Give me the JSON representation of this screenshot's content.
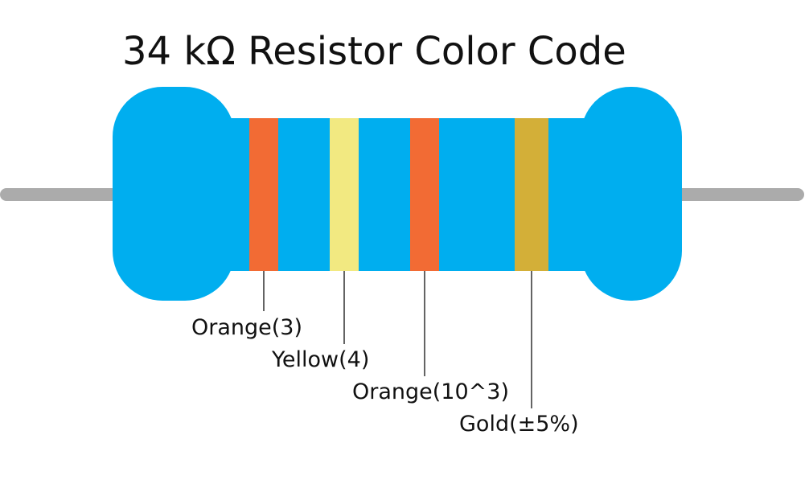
{
  "title": "34 kΩ Resistor Color Code",
  "colors": {
    "body": "#00AEEF",
    "lead": "#ABABAB",
    "orange": "#F26B34",
    "yellow": "#F2E981",
    "gold": "#D3AF38",
    "text": "#111111"
  },
  "bands": [
    {
      "color": "orange",
      "label": "Orange(3)"
    },
    {
      "color": "yellow",
      "label": "Yellow(4)"
    },
    {
      "color": "orange",
      "label": "Orange(10^3)"
    },
    {
      "color": "gold",
      "label": "Gold(±5%)"
    }
  ]
}
